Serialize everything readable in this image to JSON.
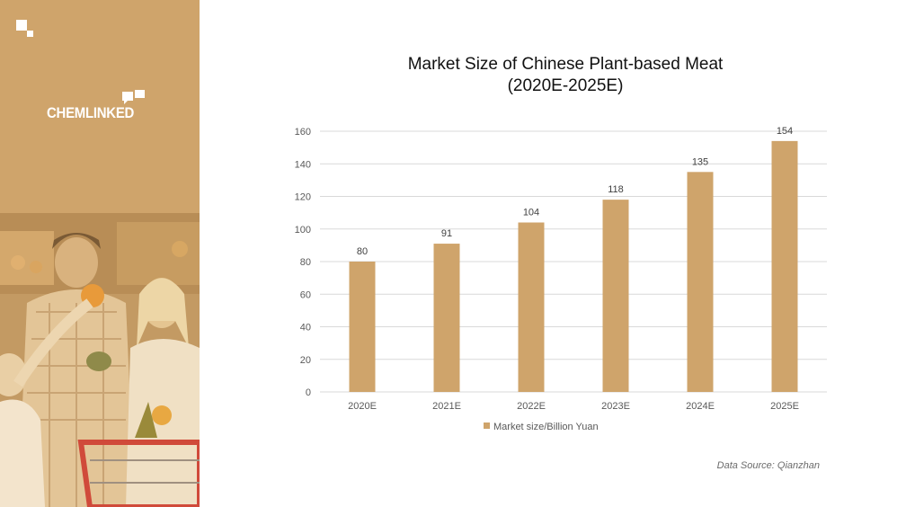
{
  "brand": {
    "name": "CHEMLINKED"
  },
  "title": {
    "line1": "Market Size of Chinese Plant-based Meat",
    "line2": "(2020E-2025E)"
  },
  "source": "Data Source: Qianzhan",
  "icons": {
    "photo": "family-shopping-photo",
    "logo": "chemlinked-logo-icon"
  },
  "colors": {
    "sidebar": "#cfa46b",
    "bar": "#cfa46b",
    "grid": "#d9d9d9",
    "text": "#595959"
  },
  "chart_data": {
    "type": "bar",
    "title": "Market Size of Chinese Plant-based Meat (2020E-2025E)",
    "categories": [
      "2020E",
      "2021E",
      "2022E",
      "2023E",
      "2024E",
      "2025E"
    ],
    "series": [
      {
        "name": "Market size/Billion Yuan",
        "values": [
          80,
          91,
          104,
          118,
          135,
          154
        ]
      }
    ],
    "yticks": [
      0,
      20,
      40,
      60,
      80,
      100,
      120,
      140,
      160
    ],
    "ylim": [
      0,
      160
    ],
    "grid": true,
    "legend": "bottom",
    "data_labels": true
  }
}
